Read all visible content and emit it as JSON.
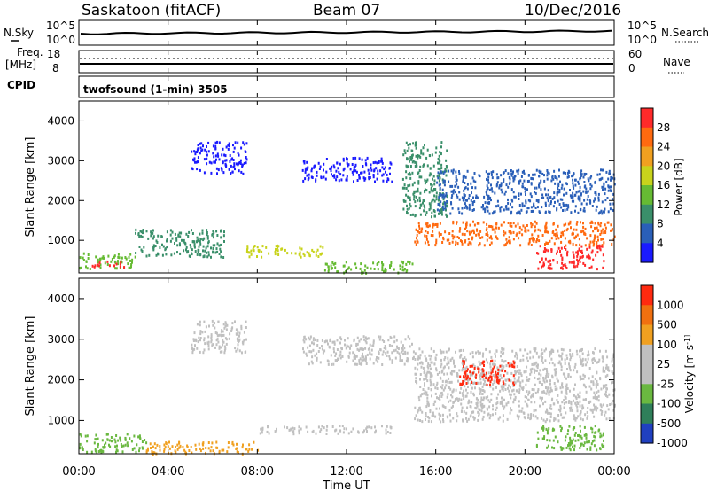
{
  "header": {
    "station": "Saskatoon (fitACF)",
    "beam": "Beam 07",
    "date": "10/Dec/2016"
  },
  "noise_panel": {
    "left_label": "N.Sky",
    "right_label": "N.Search",
    "left_top_tick": "10^5",
    "left_bottom_tick": "10^0",
    "right_top_tick": "10^5",
    "right_bottom_tick": "10^0"
  },
  "freq_panel": {
    "left_label_1": "Freq.",
    "left_label_2": "[MHz]",
    "right_label": "Nave",
    "left_ticks": [
      "18",
      "8"
    ],
    "right_ticks": [
      "60",
      "0"
    ]
  },
  "cpid_panel": {
    "label": "CPID",
    "program": "twofsound (1-min) 3505"
  },
  "colors": {
    "power": [
      "#1a1aff",
      "#2a5fb8",
      "#3a8f6a",
      "#66bb33",
      "#c8d31c",
      "#f0a020",
      "#ff6a10",
      "#ff2a2a"
    ],
    "velocity": [
      "#2040c0",
      "#2f7f5a",
      "#6ab840",
      "#c0c0c0",
      "#c0c0c0",
      "#f0a020",
      "#f07010",
      "#ff2a10"
    ],
    "vel_ground": "#c8c8c8"
  },
  "chart_data": [
    {
      "type": "heatmap",
      "parameter": "Power",
      "ylabel": "Slant Range [km]",
      "xlabel": "",
      "ylim": [
        180,
        4500
      ],
      "yticks": [
        1000,
        2000,
        3000,
        4000
      ],
      "xlim": [
        0,
        24
      ],
      "xticks": [
        "00:00",
        "04:00",
        "08:00",
        "12:00",
        "16:00",
        "20:00",
        "00:00"
      ],
      "colorbar": {
        "label": "Power [dB]",
        "ticks": [
          "28",
          "24",
          "20",
          "16",
          "12",
          "8",
          "4"
        ],
        "range": [
          0,
          30
        ]
      },
      "regions": [
        {
          "t0": 0.0,
          "t1": 2.5,
          "r0": 300,
          "r1": 700,
          "level": 3
        },
        {
          "t0": 0.5,
          "t1": 2.0,
          "r0": 350,
          "r1": 500,
          "level": 7
        },
        {
          "t0": 2.5,
          "t1": 6.5,
          "r0": 600,
          "r1": 1300,
          "level": 2
        },
        {
          "t0": 5.0,
          "t1": 7.5,
          "r0": 2700,
          "r1": 3500,
          "level": 0
        },
        {
          "t0": 7.5,
          "t1": 11.0,
          "r0": 600,
          "r1": 900,
          "level": 4
        },
        {
          "t0": 11.0,
          "t1": 15.0,
          "r0": 200,
          "r1": 500,
          "level": 3
        },
        {
          "t0": 10.0,
          "t1": 14.0,
          "r0": 2500,
          "r1": 3100,
          "level": 0
        },
        {
          "t0": 14.5,
          "t1": 16.5,
          "r0": 1600,
          "r1": 3500,
          "level": 2
        },
        {
          "t0": 16.0,
          "t1": 24.0,
          "r0": 1700,
          "r1": 2800,
          "level": 1
        },
        {
          "t0": 15.0,
          "t1": 24.0,
          "r0": 900,
          "r1": 1500,
          "level": 6
        },
        {
          "t0": 20.5,
          "t1": 23.5,
          "r0": 300,
          "r1": 900,
          "level": 7
        }
      ]
    },
    {
      "type": "heatmap",
      "parameter": "Velocity",
      "ylabel": "Slant Range [km]",
      "xlabel": "Time UT",
      "ylim": [
        180,
        4500
      ],
      "yticks": [
        1000,
        2000,
        3000,
        4000
      ],
      "xlim": [
        0,
        24
      ],
      "xticks": [
        "00:00",
        "04:00",
        "08:00",
        "12:00",
        "16:00",
        "20:00",
        "00:00"
      ],
      "colorbar": {
        "label": "Velocity [m s^-1]",
        "ticks": [
          "1000",
          "500",
          "100",
          "25",
          "-25",
          "-100",
          "-500",
          "-1000"
        ],
        "range": [
          -1000,
          1000
        ]
      },
      "regions": [
        {
          "t0": 0.0,
          "t1": 3.0,
          "r0": 250,
          "r1": 700,
          "level": 2
        },
        {
          "t0": 3.0,
          "t1": 8.0,
          "r0": 200,
          "r1": 500,
          "level": 5
        },
        {
          "t0": 5.0,
          "t1": 7.5,
          "r0": 2700,
          "r1": 3500,
          "level": 3
        },
        {
          "t0": 8.0,
          "t1": 14.0,
          "r0": 700,
          "r1": 900,
          "level": 3
        },
        {
          "t0": 10.0,
          "t1": 15.0,
          "r0": 2400,
          "r1": 3100,
          "level": 3
        },
        {
          "t0": 15.0,
          "t1": 24.0,
          "r0": 1000,
          "r1": 2800,
          "level": 3
        },
        {
          "t0": 17.0,
          "t1": 19.5,
          "r0": 1900,
          "r1": 2500,
          "level": 7
        },
        {
          "t0": 20.5,
          "t1": 23.5,
          "r0": 300,
          "r1": 900,
          "level": 2
        }
      ]
    }
  ]
}
